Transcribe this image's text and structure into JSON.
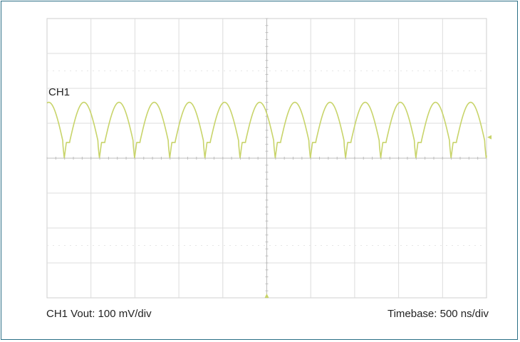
{
  "colors": {
    "frame": "#2b6f86",
    "grid": "#dcdcdc",
    "axis": "#bdbdbd",
    "trace": "#c8d46a",
    "marker": "#c8d46a",
    "text": "#222222"
  },
  "chart_data": {
    "type": "line",
    "title": "",
    "channel_label": "CH1",
    "caption_left": "CH1 Vout: 100 mV/div",
    "caption_right": "Timebase: 500 ns/div",
    "x_divisions": 10,
    "y_divisions": 8,
    "grid": true,
    "x_units": "ns",
    "y_units": "mV",
    "x_range": [
      0,
      5000
    ],
    "y_range": [
      -400,
      400
    ],
    "series": [
      {
        "waveform": "periodic ripple",
        "period": 400,
        "peak": 160,
        "valley": 0,
        "cycles_shown": 12.5
      }
    ]
  }
}
